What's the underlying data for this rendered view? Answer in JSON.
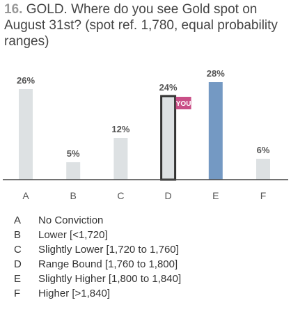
{
  "question": {
    "number": "16.",
    "text": "GOLD. Where do you see Gold spot on August 31st? (spot ref. 1,780, equal probability ranges)"
  },
  "chart_data": {
    "type": "bar",
    "categories": [
      "A",
      "B",
      "C",
      "D",
      "E",
      "F"
    ],
    "values": [
      26,
      5,
      12,
      24,
      28,
      6
    ],
    "value_labels": [
      "26%",
      "5%",
      "12%",
      "24%",
      "28%",
      "6%"
    ],
    "highlight_index": 4,
    "you_index": 3,
    "you_label": "YOU",
    "ylim": [
      0,
      28
    ],
    "grid": false,
    "colors": {
      "bar": "#dde1e3",
      "highlight": "#7499c3",
      "you_outline": "#333333",
      "you_badge": "#c94f87",
      "axis": "#444444",
      "label": "#555555"
    }
  },
  "legend": [
    {
      "letter": "A",
      "text": "No Conviction"
    },
    {
      "letter": "B",
      "text": "Lower [<1,720]"
    },
    {
      "letter": "C",
      "text": "Slightly Lower [1,720 to 1,760]"
    },
    {
      "letter": "D",
      "text": "Range Bound [1,760 to 1,800]"
    },
    {
      "letter": "E",
      "text": "Slightly Higher [1,800 to 1,840]"
    },
    {
      "letter": "F",
      "text": "Higher [>1,840]"
    }
  ]
}
